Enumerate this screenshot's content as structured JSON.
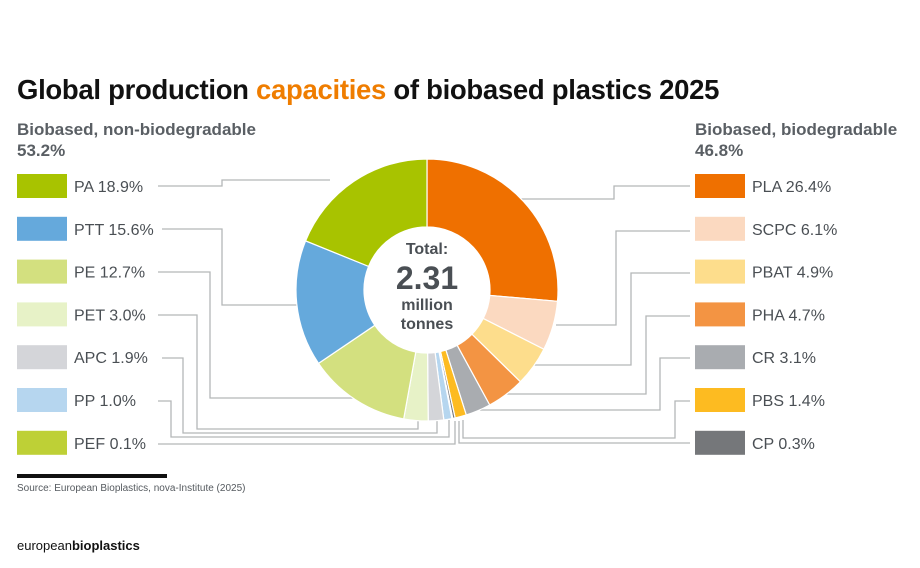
{
  "chart_data": {
    "type": "pie",
    "variant": "donut",
    "title_parts": [
      "Global production ",
      "capacities",
      " of biobased plastics 2025"
    ],
    "title": "Global production capacities of biobased plastics 2025",
    "center": {
      "line1": "Total:",
      "line2": "2.31",
      "line3": "million",
      "line4": "tonnes"
    },
    "groups": [
      {
        "name": "Biobased, non-biodegradable",
        "share": "53.2%",
        "legend_position": "left"
      },
      {
        "name": "Biobased, biodegradable",
        "share": "46.8%",
        "legend_position": "right"
      }
    ],
    "slices_clockwise_from_top": [
      {
        "name": "PLA",
        "value": 26.4,
        "label": "PLA 26.4%",
        "color": "#ef7000",
        "group": 1
      },
      {
        "name": "SCPC",
        "value": 6.1,
        "label": "SCPC 6.1%",
        "color": "#fbd9c0",
        "group": 1
      },
      {
        "name": "PBAT",
        "value": 4.9,
        "label": "PBAT 4.9%",
        "color": "#fddd8c",
        "group": 1
      },
      {
        "name": "PHA",
        "value": 4.7,
        "label": "PHA 4.7%",
        "color": "#f39443",
        "group": 1
      },
      {
        "name": "CR",
        "value": 3.1,
        "label": "CR 3.1%",
        "color": "#a9acb0",
        "group": 1
      },
      {
        "name": "PBS",
        "value": 1.4,
        "label": "PBS 1.4%",
        "color": "#fdbb21",
        "group": 1
      },
      {
        "name": "CP",
        "value": 0.3,
        "label": "CP 0.3%",
        "color": "#75777a",
        "group": 1
      },
      {
        "name": "PEF",
        "value": 0.1,
        "label": "PEF 0.1%",
        "color": "#bed036",
        "group": 0
      },
      {
        "name": "PP",
        "value": 1.0,
        "label": "PP 1.0%",
        "color": "#b6d6ef",
        "group": 0
      },
      {
        "name": "APC",
        "value": 1.9,
        "label": "APC 1.9%",
        "color": "#d4d5d9",
        "group": 0
      },
      {
        "name": "PET",
        "value": 3.0,
        "label": "PET 3.0%",
        "color": "#e7f2c7",
        "group": 0
      },
      {
        "name": "PE",
        "value": 12.7,
        "label": "PE 12.7%",
        "color": "#d3e07f",
        "group": 0
      },
      {
        "name": "PTT",
        "value": 15.6,
        "label": "PTT 15.6%",
        "color": "#65a9dc",
        "group": 0
      },
      {
        "name": "PA",
        "value": 18.9,
        "label": "PA 18.9%",
        "color": "#a8c300",
        "group": 0
      }
    ],
    "legend_left_order": [
      "PA",
      "PTT",
      "PE",
      "PET",
      "APC",
      "PP",
      "PEF"
    ],
    "legend_right_order": [
      "PLA",
      "SCPC",
      "PBAT",
      "PHA",
      "CR",
      "PBS",
      "CP"
    ],
    "unit": "%"
  },
  "source": "Source: European Bioplastics, nova-Institute (2025)",
  "logo": {
    "part1": "european",
    "part2": "bioplastics"
  },
  "colors": {
    "accent": "#ef7d00",
    "leader_line": "#b4b6b8",
    "text": "#4a4f54"
  }
}
